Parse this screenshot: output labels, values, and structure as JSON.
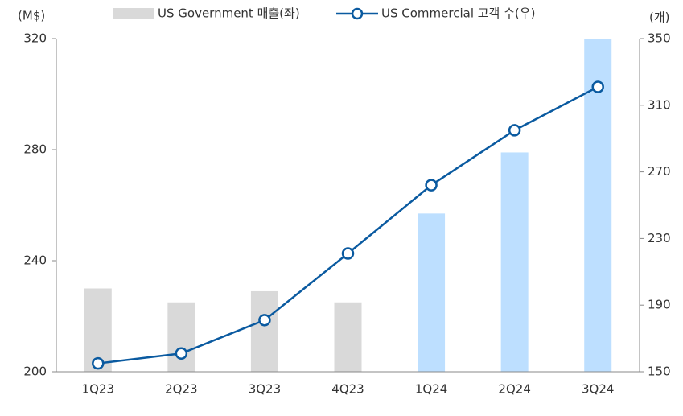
{
  "chart_data": {
    "type": "bar-line",
    "y_unit": "(M$)",
    "y2_unit": "(개)",
    "categories": [
      "1Q23",
      "2Q23",
      "3Q23",
      "4Q23",
      "1Q24",
      "2Q24",
      "3Q24"
    ],
    "series": [
      {
        "name": "US Government 매출(좌)",
        "type": "bar",
        "color": "#d9d9d9",
        "colors": [
          "#d9d9d9",
          "#d9d9d9",
          "#d9d9d9",
          "#d9d9d9",
          "#bddfff",
          "#bddfff",
          "#bddfff"
        ],
        "values": [
          230,
          225,
          229,
          225,
          257,
          279,
          320
        ]
      },
      {
        "name": "US Commercial 고객 수(우)",
        "type": "line",
        "axis": "y2",
        "color": "#0a5aa0",
        "values": [
          155,
          161,
          181,
          221,
          262,
          295,
          321
        ]
      }
    ],
    "ylim": [
      200,
      320
    ],
    "yticks": [
      200,
      240,
      280,
      320
    ],
    "y2lim": [
      150,
      350
    ],
    "y2ticks": [
      150,
      190,
      230,
      270,
      310,
      350
    ],
    "grid": false,
    "legend": "top"
  }
}
